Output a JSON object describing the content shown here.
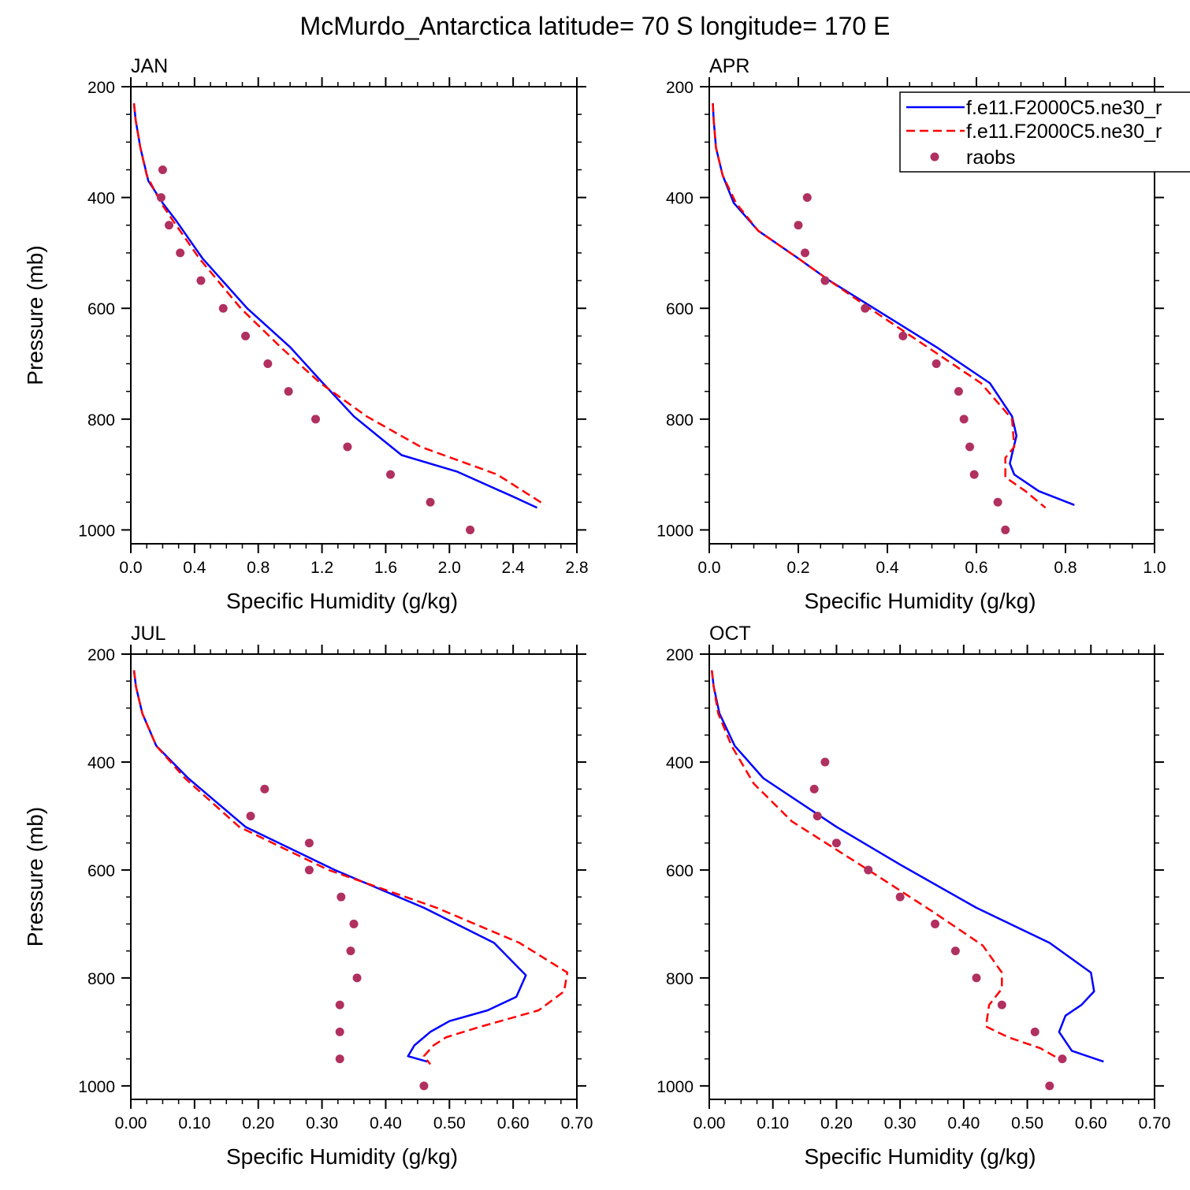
{
  "figure_title": "McMurdo_Antarctica  latitude= 70 S longitude= 170 E",
  "legend": {
    "entries": [
      {
        "label": "f.e11.F2000C5.ne30_r",
        "style": "solid",
        "color": "#0000ff"
      },
      {
        "label": "f.e11.F2000C5.ne30_r",
        "style": "dashed",
        "color": "#ff0000"
      },
      {
        "label": "raobs",
        "style": "marker",
        "color": "#b03060"
      }
    ]
  },
  "colors": {
    "model_a": "#0000ff",
    "model_b": "#ff0000",
    "raobs": "#b03060"
  },
  "chart_data": [
    {
      "type": "line",
      "title": "JAN",
      "xlabel": "Specific Humidity (g/kg)",
      "ylabel": "Pressure (mb)",
      "xlim": [
        0,
        2.8
      ],
      "ylim": [
        200,
        1025
      ],
      "y_reversed": true,
      "xticks": [
        "0.0",
        "0.4",
        "0.8",
        "1.2",
        "1.6",
        "2.0",
        "2.4",
        "2.8"
      ],
      "yticks": [
        "200",
        "400",
        "600",
        "800",
        "1000"
      ],
      "series": [
        {
          "x": [
            0.02,
            0.03,
            0.06,
            0.11,
            0.2,
            0.28,
            0.45,
            0.73,
            1.0,
            1.19,
            1.4,
            1.57,
            1.7,
            2.05,
            2.4,
            2.55
          ],
          "y": [
            230,
            260,
            310,
            370,
            410,
            440,
            510,
            600,
            670,
            730,
            795,
            835,
            865,
            895,
            940,
            960
          ]
        },
        {
          "x": [
            0.02,
            0.03,
            0.06,
            0.1,
            0.19,
            0.26,
            0.43,
            0.69,
            0.94,
            1.19,
            1.48,
            1.82,
            2.3,
            2.6
          ],
          "y": [
            230,
            260,
            310,
            360,
            410,
            440,
            510,
            600,
            670,
            735,
            795,
            850,
            900,
            955
          ]
        },
        {
          "x": [
            0.2,
            0.19,
            0.24,
            0.31,
            0.44,
            0.58,
            0.72,
            0.86,
            0.99,
            1.16,
            1.36,
            1.63,
            1.88,
            2.13
          ],
          "y": [
            350,
            400,
            450,
            500,
            550,
            600,
            650,
            700,
            750,
            800,
            850,
            900,
            950,
            1000
          ]
        }
      ]
    },
    {
      "type": "line",
      "title": "APR",
      "xlabel": "Specific Humidity (g/kg)",
      "ylabel": "",
      "xlim": [
        0,
        1.0
      ],
      "ylim": [
        200,
        1025
      ],
      "y_reversed": true,
      "xticks": [
        "0.0",
        "0.2",
        "0.4",
        "0.6",
        "0.8",
        "1.0"
      ],
      "yticks": [
        "200",
        "400",
        "600",
        "800",
        "1000"
      ],
      "series": [
        {
          "x": [
            0.008,
            0.01,
            0.015,
            0.03,
            0.055,
            0.11,
            0.2,
            0.27,
            0.37,
            0.51,
            0.63,
            0.68,
            0.69,
            0.675,
            0.685,
            0.74,
            0.82
          ],
          "y": [
            230,
            260,
            310,
            360,
            410,
            460,
            510,
            550,
            600,
            670,
            735,
            795,
            830,
            880,
            900,
            930,
            955
          ]
        },
        {
          "x": [
            0.008,
            0.01,
            0.015,
            0.03,
            0.06,
            0.11,
            0.2,
            0.27,
            0.36,
            0.49,
            0.61,
            0.68,
            0.685,
            0.665,
            0.665,
            0.71,
            0.755
          ],
          "y": [
            230,
            260,
            310,
            360,
            410,
            460,
            510,
            550,
            600,
            670,
            735,
            800,
            850,
            870,
            905,
            930,
            960
          ]
        },
        {
          "x": [
            0.22,
            0.2,
            0.215,
            0.26,
            0.35,
            0.435,
            0.51,
            0.56,
            0.572,
            0.585,
            0.595,
            0.648,
            0.665
          ],
          "y": [
            400,
            450,
            500,
            550,
            600,
            650,
            700,
            750,
            800,
            850,
            900,
            950,
            1000
          ]
        }
      ]
    },
    {
      "type": "line",
      "title": "JUL",
      "xlabel": "Specific Humidity (g/kg)",
      "ylabel": "Pressure (mb)",
      "xlim": [
        0,
        0.7
      ],
      "ylim": [
        200,
        1025
      ],
      "y_reversed": true,
      "xticks": [
        "0.00",
        "0.10",
        "0.20",
        "0.30",
        "0.40",
        "0.50",
        "0.60",
        "0.70"
      ],
      "yticks": [
        "200",
        "400",
        "600",
        "800",
        "1000"
      ],
      "series": [
        {
          "x": [
            0.005,
            0.008,
            0.018,
            0.04,
            0.09,
            0.18,
            0.32,
            0.46,
            0.57,
            0.62,
            0.605,
            0.56,
            0.5,
            0.47,
            0.445,
            0.435,
            0.465
          ],
          "y": [
            230,
            260,
            310,
            370,
            430,
            520,
            600,
            670,
            735,
            795,
            835,
            860,
            880,
            900,
            925,
            945,
            955
          ]
        },
        {
          "x": [
            0.005,
            0.008,
            0.018,
            0.04,
            0.085,
            0.17,
            0.31,
            0.48,
            0.61,
            0.685,
            0.68,
            0.64,
            0.55,
            0.495,
            0.475,
            0.46,
            0.47
          ],
          "y": [
            230,
            260,
            310,
            370,
            430,
            520,
            600,
            670,
            735,
            790,
            825,
            860,
            890,
            910,
            925,
            945,
            960
          ]
        },
        {
          "x": [
            0.21,
            0.188,
            0.28,
            0.28,
            0.33,
            0.35,
            0.345,
            0.355,
            0.328,
            0.328,
            0.328,
            0.46
          ],
          "y": [
            450,
            500,
            550,
            600,
            650,
            700,
            750,
            800,
            850,
            900,
            950,
            1000
          ]
        }
      ]
    },
    {
      "type": "line",
      "title": "OCT",
      "xlabel": "Specific Humidity (g/kg)",
      "ylabel": "",
      "xlim": [
        0,
        0.7
      ],
      "ylim": [
        200,
        1025
      ],
      "y_reversed": true,
      "xticks": [
        "0.00",
        "0.10",
        "0.20",
        "0.30",
        "0.40",
        "0.50",
        "0.60",
        "0.70"
      ],
      "yticks": [
        "200",
        "400",
        "600",
        "800",
        "1000"
      ],
      "series": [
        {
          "x": [
            0.004,
            0.007,
            0.016,
            0.04,
            0.085,
            0.2,
            0.3,
            0.42,
            0.535,
            0.6,
            0.605,
            0.585,
            0.56,
            0.55,
            0.57,
            0.62
          ],
          "y": [
            230,
            260,
            310,
            370,
            430,
            520,
            590,
            670,
            735,
            790,
            825,
            850,
            870,
            900,
            935,
            955
          ]
        },
        {
          "x": [
            0.004,
            0.007,
            0.014,
            0.035,
            0.07,
            0.13,
            0.25,
            0.355,
            0.43,
            0.46,
            0.46,
            0.44,
            0.435,
            0.47,
            0.52,
            0.55
          ],
          "y": [
            230,
            260,
            310,
            370,
            440,
            510,
            600,
            680,
            740,
            790,
            820,
            850,
            890,
            910,
            930,
            950
          ]
        },
        {
          "x": [
            0.182,
            0.165,
            0.17,
            0.2,
            0.25,
            0.3,
            0.355,
            0.387,
            0.42,
            0.46,
            0.512,
            0.555,
            0.535
          ],
          "y": [
            400,
            450,
            500,
            550,
            600,
            650,
            700,
            750,
            800,
            850,
            900,
            950,
            1000
          ]
        }
      ]
    }
  ]
}
